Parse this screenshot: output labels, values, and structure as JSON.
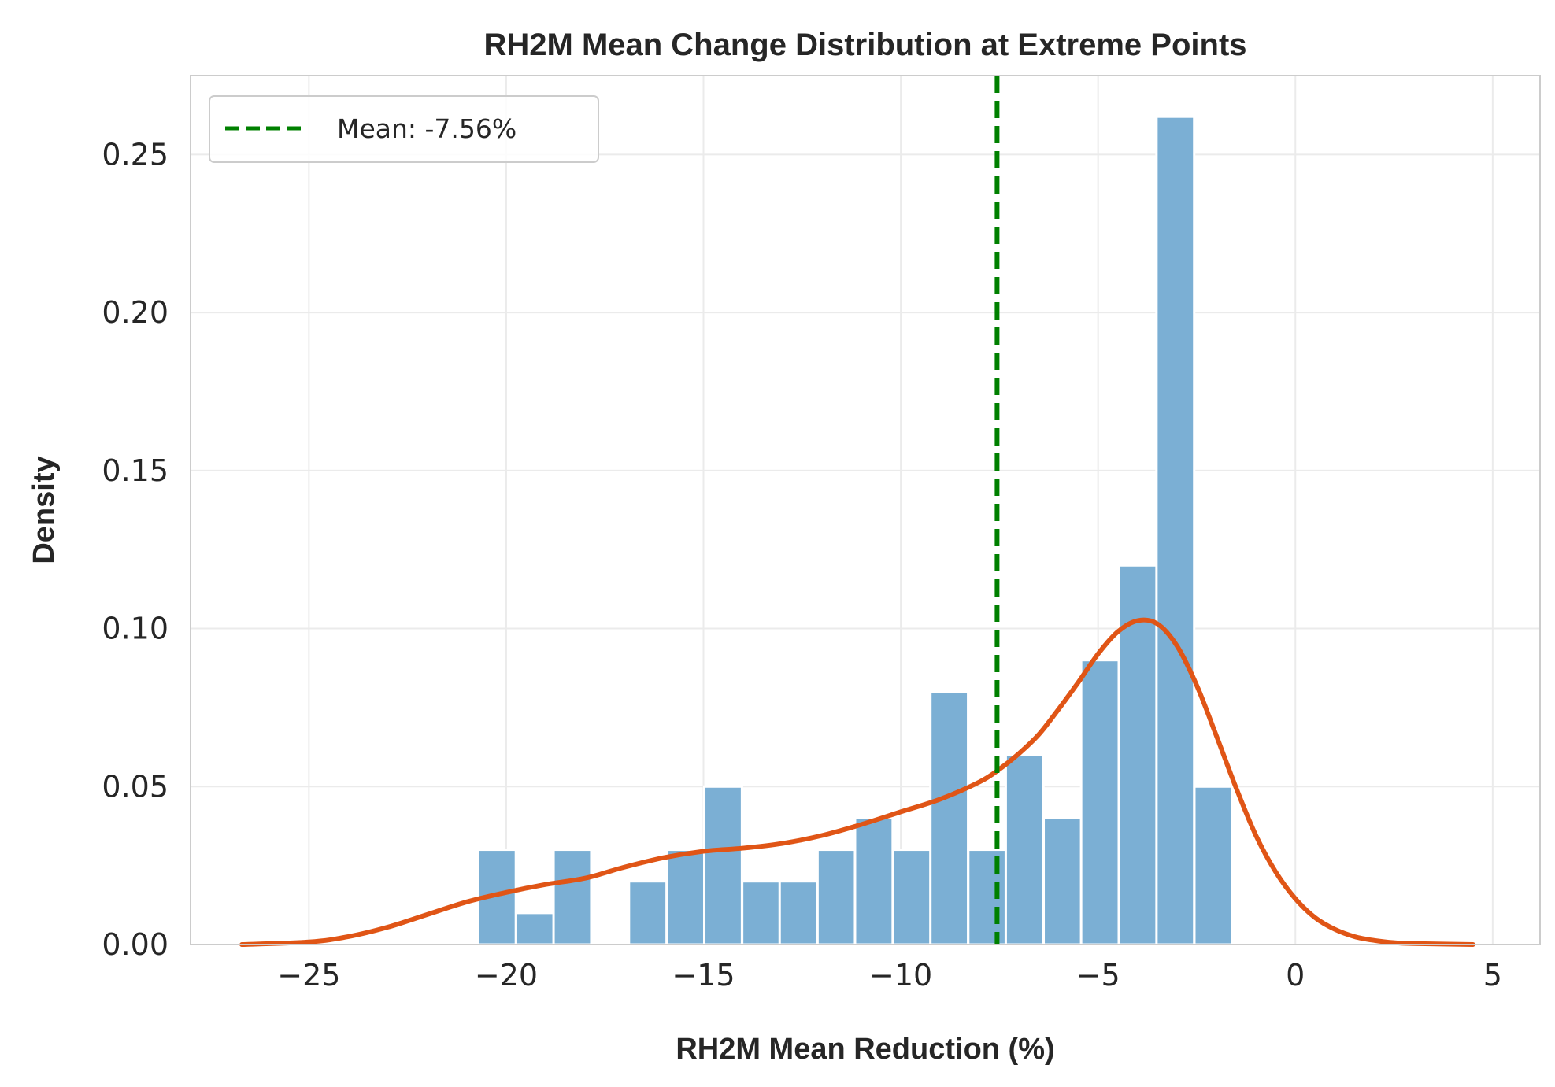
{
  "chart_data": {
    "type": "bar",
    "title": "RH2M Mean Change Distribution at Extreme Points",
    "xlabel": "RH2M Mean Reduction (%)",
    "ylabel": "Density",
    "xlim": [
      -28.0,
      6.2
    ],
    "ylim": [
      0,
      0.275
    ],
    "xticks": [
      -25,
      -20,
      -15,
      -10,
      -5,
      0,
      5
    ],
    "xtick_labels": [
      "−25",
      "−20",
      "−15",
      "−10",
      "−5",
      "0",
      "5"
    ],
    "yticks": [
      0.0,
      0.05,
      0.1,
      0.15,
      0.2,
      0.25
    ],
    "ytick_labels": [
      "0.00",
      "0.05",
      "0.10",
      "0.15",
      "0.20",
      "0.25"
    ],
    "grid": true,
    "legend_position": "top-left",
    "bar_color": "#7bafd4",
    "bin_width": 0.955,
    "bins": [
      {
        "x0": -20.71,
        "value": 0.03
      },
      {
        "x0": -19.75,
        "value": 0.01
      },
      {
        "x0": -18.8,
        "value": 0.03
      },
      {
        "x0": -17.84,
        "value": 0.0
      },
      {
        "x0": -16.89,
        "value": 0.02
      },
      {
        "x0": -15.93,
        "value": 0.03
      },
      {
        "x0": -14.98,
        "value": 0.05
      },
      {
        "x0": -14.02,
        "value": 0.02
      },
      {
        "x0": -13.07,
        "value": 0.02
      },
      {
        "x0": -12.11,
        "value": 0.03
      },
      {
        "x0": -11.16,
        "value": 0.04
      },
      {
        "x0": -10.2,
        "value": 0.03
      },
      {
        "x0": -9.25,
        "value": 0.08
      },
      {
        "x0": -8.29,
        "value": 0.03
      },
      {
        "x0": -7.34,
        "value": 0.06
      },
      {
        "x0": -6.38,
        "value": 0.04
      },
      {
        "x0": -5.43,
        "value": 0.09
      },
      {
        "x0": -4.47,
        "value": 0.12
      },
      {
        "x0": -3.52,
        "value": 0.262
      },
      {
        "x0": -2.56,
        "value": 0.05
      }
    ],
    "kde": {
      "name": "KDE",
      "color": "#e05516",
      "x": [
        -26.7,
        -25,
        -24,
        -23,
        -22,
        -21,
        -20,
        -19,
        -18,
        -17,
        -16,
        -15,
        -14,
        -13,
        -12,
        -11,
        -10,
        -9,
        -8,
        -7.5,
        -7,
        -6.5,
        -6,
        -5.5,
        -5,
        -4.5,
        -4,
        -3.5,
        -3,
        -2.5,
        -2,
        -1.5,
        -1,
        -0.5,
        0,
        0.5,
        1,
        1.5,
        2,
        2.5,
        3,
        4.5
      ],
      "y": [
        0.0,
        0.0008,
        0.0025,
        0.0055,
        0.0095,
        0.0135,
        0.0165,
        0.019,
        0.021,
        0.0245,
        0.0275,
        0.0295,
        0.0305,
        0.032,
        0.0345,
        0.038,
        0.042,
        0.046,
        0.0515,
        0.0555,
        0.0605,
        0.0665,
        0.0745,
        0.083,
        0.092,
        0.099,
        0.1025,
        0.1015,
        0.0945,
        0.082,
        0.066,
        0.0495,
        0.0345,
        0.023,
        0.0145,
        0.0085,
        0.0048,
        0.0025,
        0.0013,
        0.0006,
        0.0003,
        0.0
      ]
    },
    "mean_line": {
      "x": -7.56,
      "color": "#008000",
      "label": "Mean: -7.56%"
    }
  }
}
